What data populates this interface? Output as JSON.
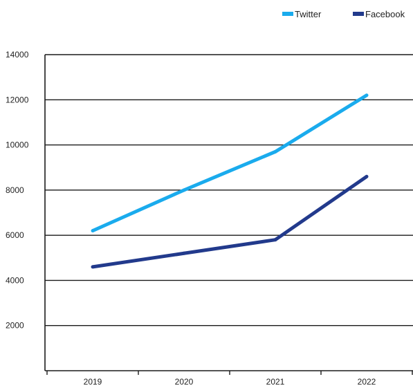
{
  "chart_data": {
    "type": "line",
    "title": "",
    "xlabel": "",
    "ylabel": "",
    "categories": [
      "2019",
      "2020",
      "2021",
      "2022"
    ],
    "ylim": [
      0,
      14000
    ],
    "yticks": [
      2000,
      4000,
      6000,
      8000,
      10000,
      12000,
      14000
    ],
    "grid": "horizontal",
    "legend_position": "top-right",
    "series": [
      {
        "name": "Twitter",
        "color": "#1aabed",
        "values": [
          6200,
          8000,
          9700,
          12200
        ]
      },
      {
        "name": "Facebook",
        "color": "#223a8c",
        "values": [
          4600,
          5200,
          5800,
          8600
        ]
      }
    ]
  }
}
